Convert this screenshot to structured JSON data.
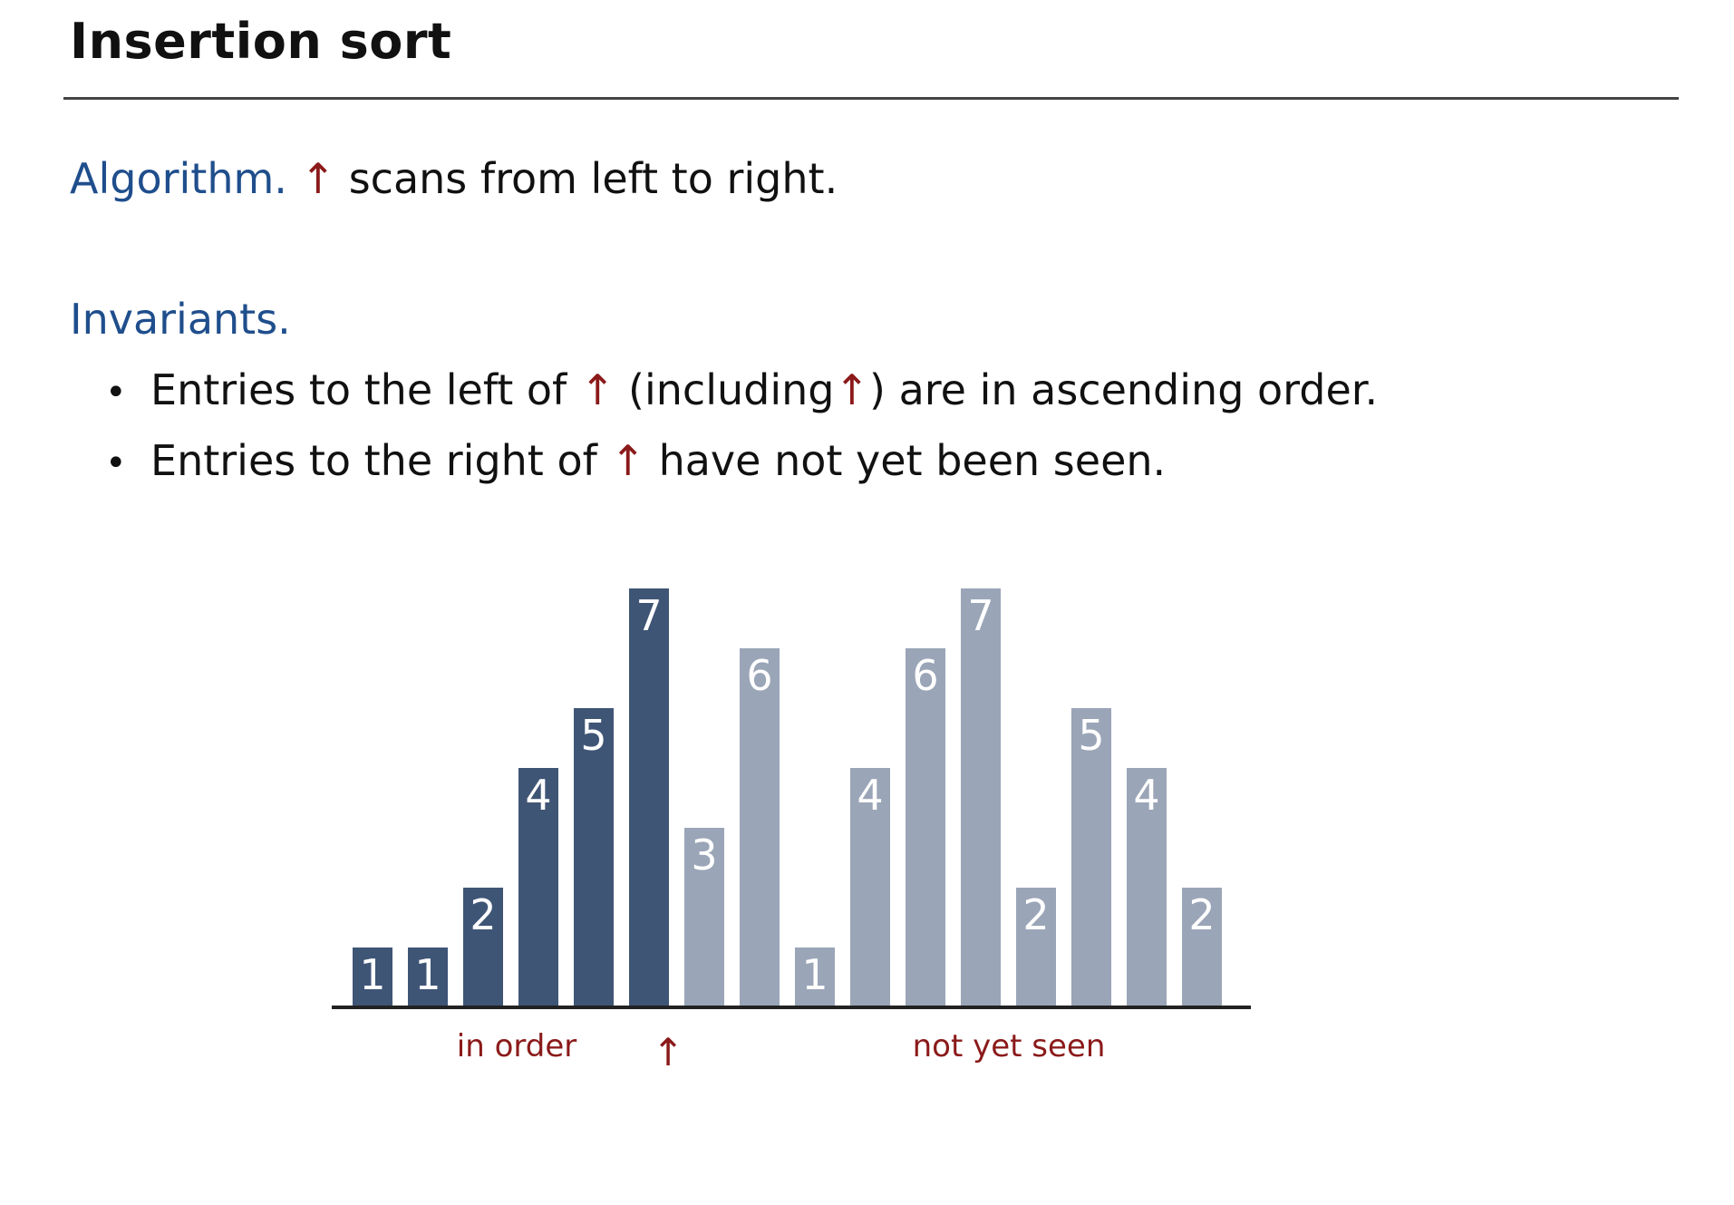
{
  "slide": {
    "title": "Insertion sort",
    "algorithm": {
      "label": "Algorithm.",
      "arrow": "↑",
      "text": "scans from left to right."
    },
    "invariants": {
      "label": "Invariants.",
      "bullets": [
        {
          "part1": "Entries to the left of",
          "arrow1": "↑",
          "part2": "(including",
          "arrow2": "↑",
          "part3": ") are in ascending order."
        },
        {
          "part1": "Entries to the right of",
          "arrow1": "↑",
          "part2": "have not yet been seen."
        }
      ]
    }
  },
  "chart_data": {
    "type": "bar",
    "values": [
      1,
      1,
      2,
      4,
      5,
      7,
      3,
      6,
      1,
      4,
      6,
      7,
      2,
      5,
      4,
      2
    ],
    "in_order_count": 6,
    "labels": {
      "in_order": "in order",
      "not_yet_seen": "not yet seen",
      "pointer": "↑"
    },
    "colors": {
      "in_order": "#3f5576",
      "not_yet_seen": "#9aa5b7",
      "baseline": "#222222",
      "caption": "#8b1a1a"
    }
  }
}
